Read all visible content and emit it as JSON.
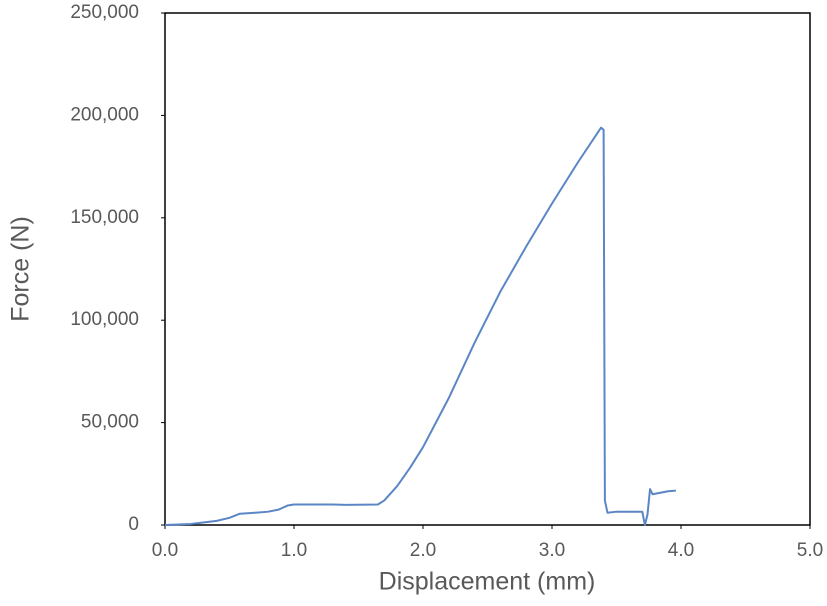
{
  "chart_data": {
    "type": "line",
    "x_label": "Displacement (mm)",
    "y_label": "Force (N)",
    "x": [
      0,
      0.2,
      0.4,
      0.5,
      0.58,
      0.7,
      0.8,
      0.88,
      0.95,
      1.0,
      1.3,
      1.4,
      1.65,
      1.7,
      1.8,
      1.9,
      2.0,
      2.2,
      2.4,
      2.6,
      2.8,
      3.0,
      3.2,
      3.38,
      3.4,
      3.41,
      3.43,
      3.5,
      3.7,
      3.72,
      3.74,
      3.76,
      3.78,
      3.9,
      3.96
    ],
    "values": [
      0,
      500,
      2000,
      3500,
      5500,
      6000,
      6500,
      7500,
      9500,
      10000,
      10000,
      9800,
      10000,
      12000,
      19000,
      28000,
      38000,
      62000,
      89000,
      114000,
      136000,
      157000,
      177000,
      194000,
      193000,
      12000,
      6000,
      6500,
      6500,
      0,
      5000,
      17500,
      15000,
      16500,
      16800
    ],
    "color": "#5b86c5",
    "xlim": [
      0,
      5
    ],
    "xticks": [
      {
        "value": 0,
        "label": "0.0"
      },
      {
        "value": 1,
        "label": "1.0"
      },
      {
        "value": 2,
        "label": "2.0"
      },
      {
        "value": 3,
        "label": "3.0"
      },
      {
        "value": 4,
        "label": "4.0"
      },
      {
        "value": 5,
        "label": "5.0"
      }
    ],
    "ylim": [
      0,
      250000
    ],
    "yticks": [
      {
        "value": 0,
        "label": "0"
      },
      {
        "value": 50000,
        "label": "50,000"
      },
      {
        "value": 100000,
        "label": "100,000"
      },
      {
        "value": 150000,
        "label": "150,000"
      },
      {
        "value": 200000,
        "label": "200,000"
      },
      {
        "value": 250000,
        "label": "250,000"
      }
    ]
  }
}
